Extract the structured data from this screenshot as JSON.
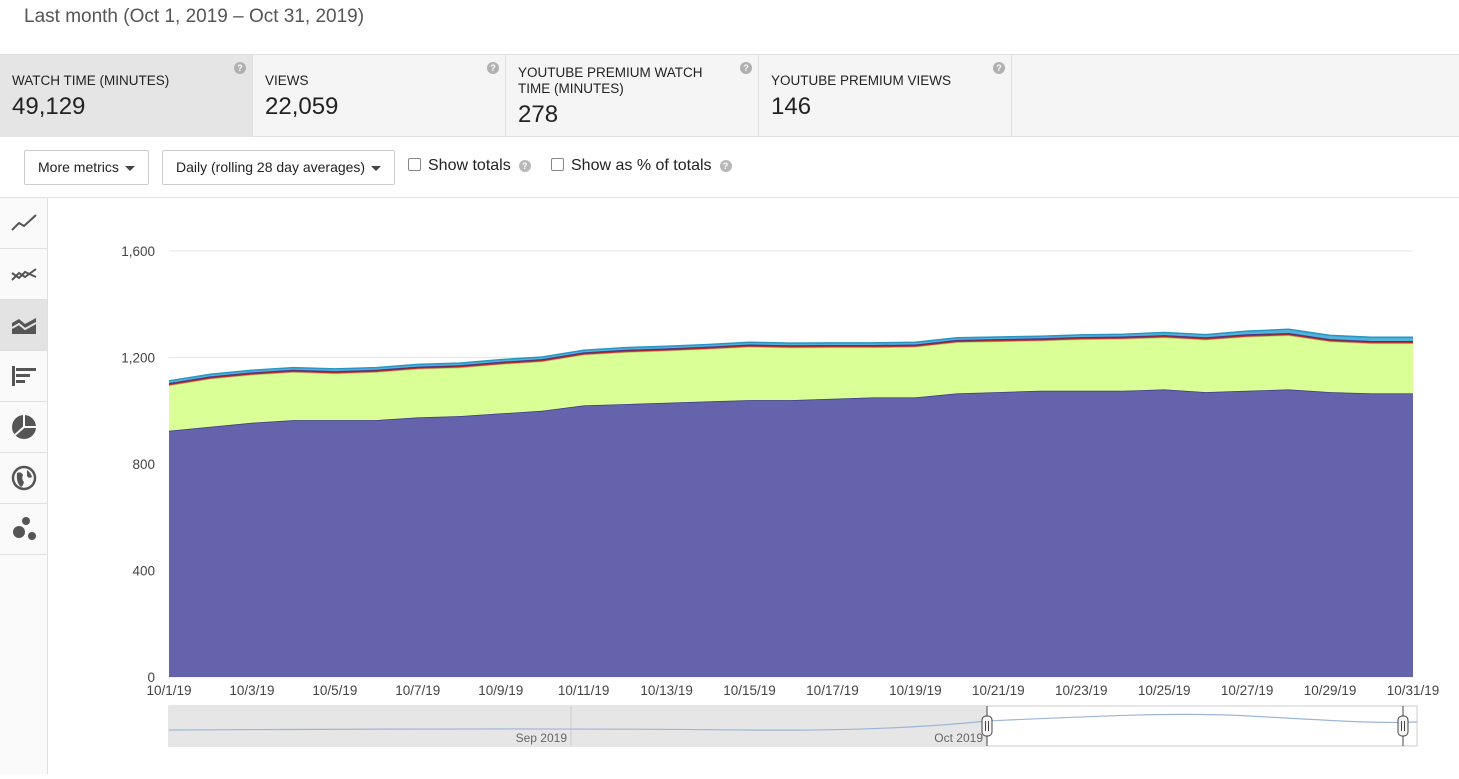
{
  "header": {
    "range_title": "Last month (Oct 1, 2019 – Oct 31, 2019)"
  },
  "metrics": [
    {
      "label": "Watch time (minutes)",
      "value": "49,129",
      "active": true
    },
    {
      "label": "Views",
      "value": "22,059",
      "active": false
    },
    {
      "label": "YouTube Premium watch time (minutes)",
      "value": "278",
      "active": false
    },
    {
      "label": "YouTube Premium views",
      "value": "146",
      "active": false
    }
  ],
  "controls": {
    "more_metrics": "More metrics",
    "granularity": "Daily (rolling 28 day averages)",
    "show_totals": "Show totals",
    "show_pct": "Show as % of totals"
  },
  "sidebar": {
    "icons": [
      "line-chart-icon",
      "multi-line-chart-icon",
      "stacked-area-chart-icon",
      "bar-chart-icon",
      "pie-chart-icon",
      "globe-map-icon",
      "bubble-chart-icon"
    ],
    "active_index": 2
  },
  "navigator": {
    "labels": [
      "Sep 2019",
      "Oct 2019"
    ]
  },
  "chart_data": {
    "type": "area",
    "stacked": true,
    "x": [
      "10/1/19",
      "10/2/19",
      "10/3/19",
      "10/4/19",
      "10/5/19",
      "10/6/19",
      "10/7/19",
      "10/8/19",
      "10/9/19",
      "10/10/19",
      "10/11/19",
      "10/12/19",
      "10/13/19",
      "10/14/19",
      "10/15/19",
      "10/16/19",
      "10/17/19",
      "10/18/19",
      "10/19/19",
      "10/20/19",
      "10/21/19",
      "10/22/19",
      "10/23/19",
      "10/24/19",
      "10/25/19",
      "10/26/19",
      "10/27/19",
      "10/28/19",
      "10/29/19",
      "10/30/19",
      "10/31/19"
    ],
    "x_tick_labels": [
      "10/1/19",
      "10/3/19",
      "10/5/19",
      "10/7/19",
      "10/9/19",
      "10/11/19",
      "10/13/19",
      "10/15/19",
      "10/17/19",
      "10/19/19",
      "10/21/19",
      "10/23/19",
      "10/25/19",
      "10/27/19",
      "10/29/19",
      "10/31/19"
    ],
    "y_ticks": [
      0,
      400,
      800,
      1200,
      1600
    ],
    "ylim": [
      0,
      1600
    ],
    "grid": true,
    "series": [
      {
        "color": "#6563ab",
        "line": "#3d3b85",
        "values": [
          925,
          940,
          955,
          965,
          965,
          965,
          975,
          980,
          990,
          1000,
          1020,
          1025,
          1030,
          1035,
          1040,
          1040,
          1045,
          1050,
          1050,
          1065,
          1070,
          1075,
          1075,
          1075,
          1080,
          1070,
          1075,
          1080,
          1070,
          1065,
          1065
        ]
      },
      {
        "color": "#daff96",
        "line": "#b8d870",
        "values": [
          170,
          180,
          180,
          180,
          175,
          180,
          182,
          182,
          185,
          185,
          190,
          195,
          195,
          197,
          200,
          197,
          193,
          188,
          190,
          192,
          190,
          188,
          193,
          195,
          195,
          197,
          203,
          203,
          190,
          188,
          188
        ]
      },
      {
        "color": "#c63c3c",
        "line": "#a02020",
        "values": [
          6,
          6,
          6,
          6,
          6,
          6,
          6,
          6,
          6,
          6,
          6,
          6,
          6,
          6,
          6,
          6,
          6,
          6,
          6,
          6,
          6,
          6,
          6,
          6,
          6,
          6,
          6,
          6,
          6,
          6,
          6
        ]
      },
      {
        "color": "#6a4ea8",
        "line": "#4a2e88",
        "values": [
          3,
          3,
          3,
          3,
          3,
          3,
          3,
          3,
          3,
          3,
          3,
          3,
          3,
          3,
          3,
          3,
          3,
          3,
          3,
          3,
          3,
          3,
          3,
          3,
          3,
          3,
          3,
          3,
          3,
          3,
          3
        ]
      },
      {
        "color": "#4fb3da",
        "line": "#2b95c2",
        "values": [
          8,
          8,
          8,
          8,
          8,
          8,
          8,
          8,
          8,
          8,
          8,
          8,
          8,
          8,
          8,
          8,
          8,
          8,
          8,
          8,
          8,
          8,
          8,
          8,
          10,
          10,
          12,
          14,
          14,
          14,
          14
        ]
      }
    ]
  }
}
